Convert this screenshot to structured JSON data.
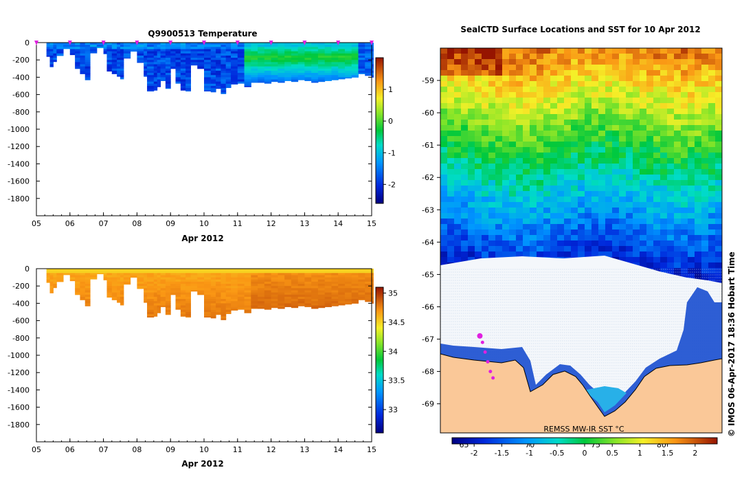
{
  "chart_data": [
    {
      "type": "heatmap",
      "title": "Q9900513  Temperature",
      "xlabel": "Apr 2012",
      "x_ticks": [
        "05",
        "06",
        "07",
        "08",
        "09",
        "10",
        "11",
        "12",
        "13",
        "14",
        "15"
      ],
      "xlim": [
        5,
        15
      ],
      "y_ticks": [
        "0",
        "-200",
        "-400",
        "-600",
        "-800",
        "-1000",
        "-1200",
        "-1400",
        "-1600",
        "-1800"
      ],
      "ylim": [
        -2000,
        0
      ],
      "colorbar": {
        "ticks": [
          "1",
          "0",
          "-1",
          "-2"
        ],
        "range": [
          -2.6,
          2.0
        ]
      },
      "profile_depths": [
        [
          5.3,
          -160
        ],
        [
          5.4,
          -280
        ],
        [
          5.5,
          -220
        ],
        [
          5.6,
          -150
        ],
        [
          5.8,
          -70
        ],
        [
          6.0,
          -140
        ],
        [
          6.15,
          -300
        ],
        [
          6.3,
          -360
        ],
        [
          6.45,
          -430
        ],
        [
          6.6,
          -120
        ],
        [
          6.8,
          -60
        ],
        [
          7.0,
          -130
        ],
        [
          7.1,
          -330
        ],
        [
          7.25,
          -360
        ],
        [
          7.4,
          -390
        ],
        [
          7.5,
          -420
        ],
        [
          7.6,
          -180
        ],
        [
          7.8,
          -100
        ],
        [
          8.0,
          -230
        ],
        [
          8.2,
          -390
        ],
        [
          8.3,
          -560
        ],
        [
          8.5,
          -550
        ],
        [
          8.6,
          -510
        ],
        [
          8.7,
          -440
        ],
        [
          8.85,
          -530
        ],
        [
          9.0,
          -300
        ],
        [
          9.15,
          -470
        ],
        [
          9.3,
          -550
        ],
        [
          9.45,
          -560
        ],
        [
          9.6,
          -260
        ],
        [
          9.8,
          -300
        ],
        [
          10.0,
          -560
        ],
        [
          10.2,
          -570
        ],
        [
          10.35,
          -530
        ],
        [
          10.5,
          -590
        ],
        [
          10.65,
          -520
        ],
        [
          10.8,
          -480
        ],
        [
          11.0,
          -470
        ],
        [
          11.2,
          -510
        ],
        [
          11.4,
          -460
        ],
        [
          11.6,
          -460
        ],
        [
          11.8,
          -470
        ],
        [
          12.0,
          -450
        ],
        [
          12.2,
          -460
        ],
        [
          12.4,
          -440
        ],
        [
          12.6,
          -450
        ],
        [
          12.8,
          -430
        ],
        [
          13.0,
          -440
        ],
        [
          13.2,
          -460
        ],
        [
          13.4,
          -450
        ],
        [
          13.6,
          -440
        ],
        [
          13.8,
          -430
        ],
        [
          14.0,
          -420
        ],
        [
          14.2,
          -410
        ],
        [
          14.4,
          -400
        ],
        [
          14.6,
          -360
        ],
        [
          14.8,
          -380
        ],
        [
          15.0,
          -400
        ]
      ],
      "profile_markers": [
        5,
        6,
        7,
        8,
        9,
        10,
        11,
        12,
        13,
        14,
        15
      ]
    },
    {
      "type": "heatmap",
      "title": "",
      "xlabel": "Apr 2012",
      "x_ticks": [
        "05",
        "06",
        "07",
        "08",
        "09",
        "10",
        "11",
        "12",
        "13",
        "14",
        "15"
      ],
      "xlim": [
        5,
        15
      ],
      "y_ticks": [
        "0",
        "-200",
        "-400",
        "-600",
        "-800",
        "-1000",
        "-1200",
        "-1400",
        "-1600",
        "-1800"
      ],
      "ylim": [
        -2000,
        0
      ],
      "colorbar": {
        "ticks": [
          "35",
          "34.5",
          "34",
          "33.5",
          "33"
        ],
        "range": [
          32.6,
          35.1
        ]
      }
    },
    {
      "type": "heatmap",
      "title": "SealCTD Surface Locations and SST for 10 Apr 2012",
      "y_ticks": [
        "-59",
        "-60",
        "-61",
        "-62",
        "-63",
        "-64",
        "-65",
        "-66",
        "-67",
        "-68",
        "-69"
      ],
      "ylim": [
        -69.9,
        -58.0
      ],
      "x_ticks": [
        "65",
        "70",
        "75",
        "80"
      ],
      "xlim": [
        63.2,
        84.6
      ],
      "colorbar": {
        "ticks": [
          "-2",
          "-1.5",
          "-1",
          "-0.5",
          "0",
          "0.5",
          "1",
          "1.5",
          "2"
        ],
        "range": [
          -2.4,
          2.4
        ]
      },
      "source_label": "REMSS MW-IR SST °C",
      "side_label": "© IMOS 06-Apr-2017 18:36 Hobart Time",
      "track": [
        [
          66.2,
          -66.9
        ],
        [
          66.4,
          -67.1
        ],
        [
          66.6,
          -67.4
        ],
        [
          66.8,
          -67.7
        ],
        [
          67.0,
          -68.0
        ],
        [
          67.2,
          -68.2
        ]
      ]
    }
  ]
}
